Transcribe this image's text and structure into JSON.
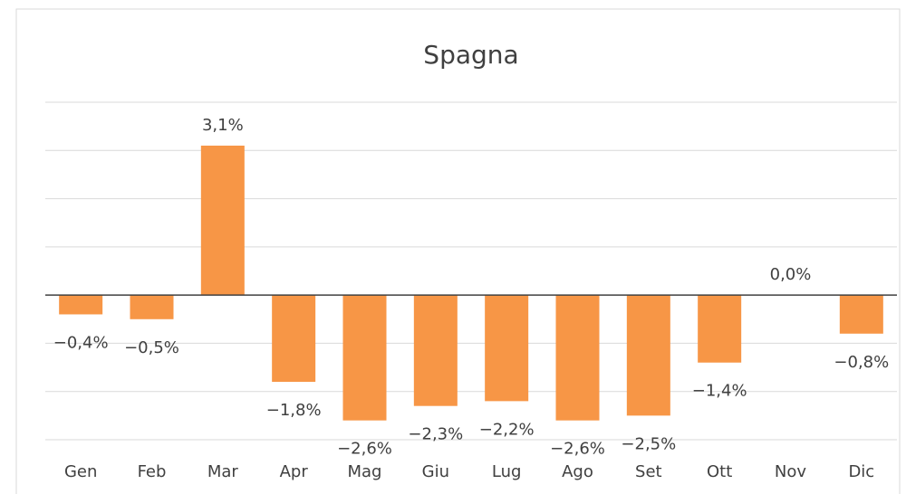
{
  "chart_data": {
    "type": "bar",
    "title": "Spagna",
    "categories": [
      "Gen",
      "Feb",
      "Mar",
      "Apr",
      "Mag",
      "Giu",
      "Lug",
      "Ago",
      "Set",
      "Ott",
      "Nov",
      "Dic"
    ],
    "values": [
      -0.4,
      -0.5,
      3.1,
      -1.8,
      -2.6,
      -2.3,
      -2.2,
      -2.6,
      -2.5,
      -1.4,
      0.0,
      -0.8
    ],
    "value_labels": [
      "−0,4%",
      "−0,5%",
      "3,1%",
      "−1,8%",
      "−2,6%",
      "−2,3%",
      "−2,2%",
      "−2,6%",
      "−2,5%",
      "−1,4%",
      "0,0%",
      "−0,8%"
    ],
    "color": "#f79646",
    "ylim": [
      -3,
      4
    ],
    "yticks": [
      -3,
      -2,
      -1,
      0,
      1,
      2,
      3,
      4
    ],
    "grid": true
  }
}
